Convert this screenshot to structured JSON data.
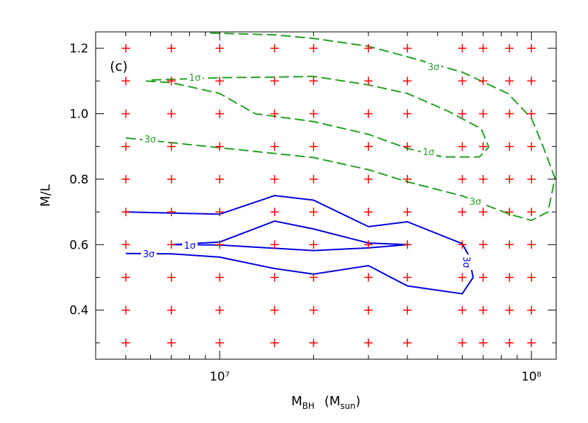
{
  "chart_data": {
    "type": "contour",
    "annotation": "(c)",
    "ylabel": "M/L",
    "xlabel_parts": [
      "M",
      "BH",
      "(M",
      "sun",
      ")"
    ],
    "xlog": true,
    "xlim": [
      4000000,
      120000000
    ],
    "ylim": [
      0.25,
      1.25
    ],
    "xticks": [
      {
        "value": 10000000,
        "label": "10⁷"
      },
      {
        "value": 100000000,
        "label": "10⁸"
      }
    ],
    "xminorticks": [
      5000000,
      6000000,
      7000000,
      8000000,
      9000000,
      20000000,
      30000000,
      40000000,
      50000000,
      60000000,
      70000000,
      80000000,
      90000000
    ],
    "yticks": [
      0.4,
      0.6,
      0.8,
      {
        "value": 1,
        "label": "1.0"
      },
      1.2
    ],
    "yminorticks": [
      0.3,
      0.5,
      0.7,
      0.9,
      1.1
    ],
    "grid_points": {
      "color": "#ff0000",
      "x": [
        5000000,
        7000000,
        10000000,
        15000000,
        20000000,
        30000000,
        40000000,
        60000000,
        70000000,
        85000000,
        100000000,
        5000000,
        7000000,
        10000000,
        15000000,
        20000000,
        30000000,
        40000000,
        60000000,
        70000000,
        85000000,
        100000000,
        5000000,
        7000000,
        10000000,
        15000000,
        20000000,
        30000000,
        40000000,
        60000000,
        70000000,
        85000000,
        100000000,
        5000000,
        7000000,
        10000000,
        15000000,
        20000000,
        30000000,
        40000000,
        60000000,
        70000000,
        85000000,
        100000000,
        5000000,
        7000000,
        10000000,
        15000000,
        20000000,
        30000000,
        40000000,
        60000000,
        70000000,
        85000000,
        100000000,
        5000000,
        7000000,
        10000000,
        15000000,
        20000000,
        30000000,
        40000000,
        60000000,
        70000000,
        85000000,
        100000000,
        5000000,
        7000000,
        10000000,
        15000000,
        20000000,
        30000000,
        40000000,
        60000000,
        70000000,
        85000000,
        100000000,
        5000000,
        7000000,
        10000000,
        15000000,
        20000000,
        30000000,
        40000000,
        60000000,
        70000000,
        85000000,
        100000000,
        5000000,
        7000000,
        10000000,
        15000000,
        20000000,
        30000000,
        40000000,
        60000000,
        70000000,
        85000000,
        100000000,
        5000000,
        7000000,
        10000000,
        15000000,
        20000000,
        30000000,
        40000000,
        60000000,
        70000000,
        85000000,
        100000000
      ],
      "y": [
        0.3,
        0.3,
        0.3,
        0.3,
        0.3,
        0.3,
        0.3,
        0.3,
        0.3,
        0.3,
        0.3,
        0.4,
        0.4,
        0.4,
        0.4,
        0.4,
        0.4,
        0.4,
        0.4,
        0.4,
        0.4,
        0.4,
        0.5,
        0.5,
        0.5,
        0.5,
        0.5,
        0.5,
        0.5,
        0.5,
        0.5,
        0.5,
        0.5,
        0.6,
        0.6,
        0.6,
        0.6,
        0.6,
        0.6,
        0.6,
        0.6,
        0.6,
        0.6,
        0.6,
        0.7,
        0.7,
        0.7,
        0.7,
        0.7,
        0.7,
        0.7,
        0.7,
        0.7,
        0.7,
        0.7,
        0.8,
        0.8,
        0.8,
        0.8,
        0.8,
        0.8,
        0.8,
        0.8,
        0.8,
        0.8,
        0.8,
        0.9,
        0.9,
        0.9,
        0.9,
        0.9,
        0.9,
        0.9,
        0.9,
        0.9,
        0.9,
        0.9,
        1.0,
        1.0,
        1.0,
        1.0,
        1.0,
        1.0,
        1.0,
        1.0,
        1.0,
        1.0,
        1.0,
        1.1,
        1.1,
        1.1,
        1.1,
        1.1,
        1.1,
        1.1,
        1.1,
        1.1,
        1.1,
        1.1,
        1.2,
        1.2,
        1.2,
        1.2,
        1.2,
        1.2,
        1.2,
        1.2,
        1.2,
        1.2,
        1.2
      ]
    },
    "contours": [
      {
        "label": "3σ",
        "color": "#0000dd",
        "dashed": false,
        "x": [
          5000000,
          10000000,
          15000000,
          20000000,
          30000000,
          40000000,
          60000000,
          63000000,
          65000000,
          60000000,
          40000000,
          30000000,
          20000000,
          15000000,
          10000000,
          7000000,
          5000000
        ],
        "y": [
          0.7,
          0.693,
          0.75,
          0.736,
          0.655,
          0.67,
          0.603,
          0.566,
          0.5,
          0.45,
          0.474,
          0.536,
          0.51,
          0.527,
          0.562,
          0.572,
          0.573
        ]
      },
      {
        "label": "1σ",
        "color": "#0000dd",
        "dashed": false,
        "x": [
          7000000,
          10000000,
          15000000,
          20000000,
          30000000,
          40000000,
          30000000,
          20000000,
          15000000,
          10000000,
          7000000
        ],
        "y": [
          0.6,
          0.608,
          0.672,
          0.648,
          0.605,
          0.6,
          0.59,
          0.582,
          0.589,
          0.599,
          0.6
        ]
      },
      {
        "label": "1σ",
        "color": "#22a022",
        "dashed": true,
        "x": [
          5800000,
          7000000,
          10000000,
          13000000,
          20000000,
          30000000,
          40000000,
          52000000,
          68000000,
          73000000,
          69000000,
          54000000,
          40000000,
          30000000,
          20000000,
          15000000,
          10000000,
          7000000,
          6000000
        ],
        "y": [
          1.1,
          1.095,
          1.062,
          1.0,
          0.976,
          0.937,
          0.894,
          0.868,
          0.868,
          0.898,
          0.954,
          1.008,
          1.062,
          1.088,
          1.114,
          1.112,
          1.11,
          1.105,
          1.103
        ]
      },
      {
        "label": "3σ",
        "color": "#22a022",
        "dashed": true,
        "x": [
          5000000,
          10000000,
          20000000,
          30000000,
          40000000,
          60000000,
          85000000,
          100000000,
          113000000,
          119000000,
          109000000,
          100000000,
          84000000,
          60000000,
          40000000,
          30000000,
          20000000,
          15000000,
          9000000
        ],
        "y": [
          0.926,
          0.896,
          0.866,
          0.829,
          0.792,
          0.749,
          0.693,
          0.674,
          0.7,
          0.803,
          0.9,
          0.986,
          1.062,
          1.127,
          1.174,
          1.206,
          1.23,
          1.241,
          1.247
        ]
      }
    ]
  }
}
